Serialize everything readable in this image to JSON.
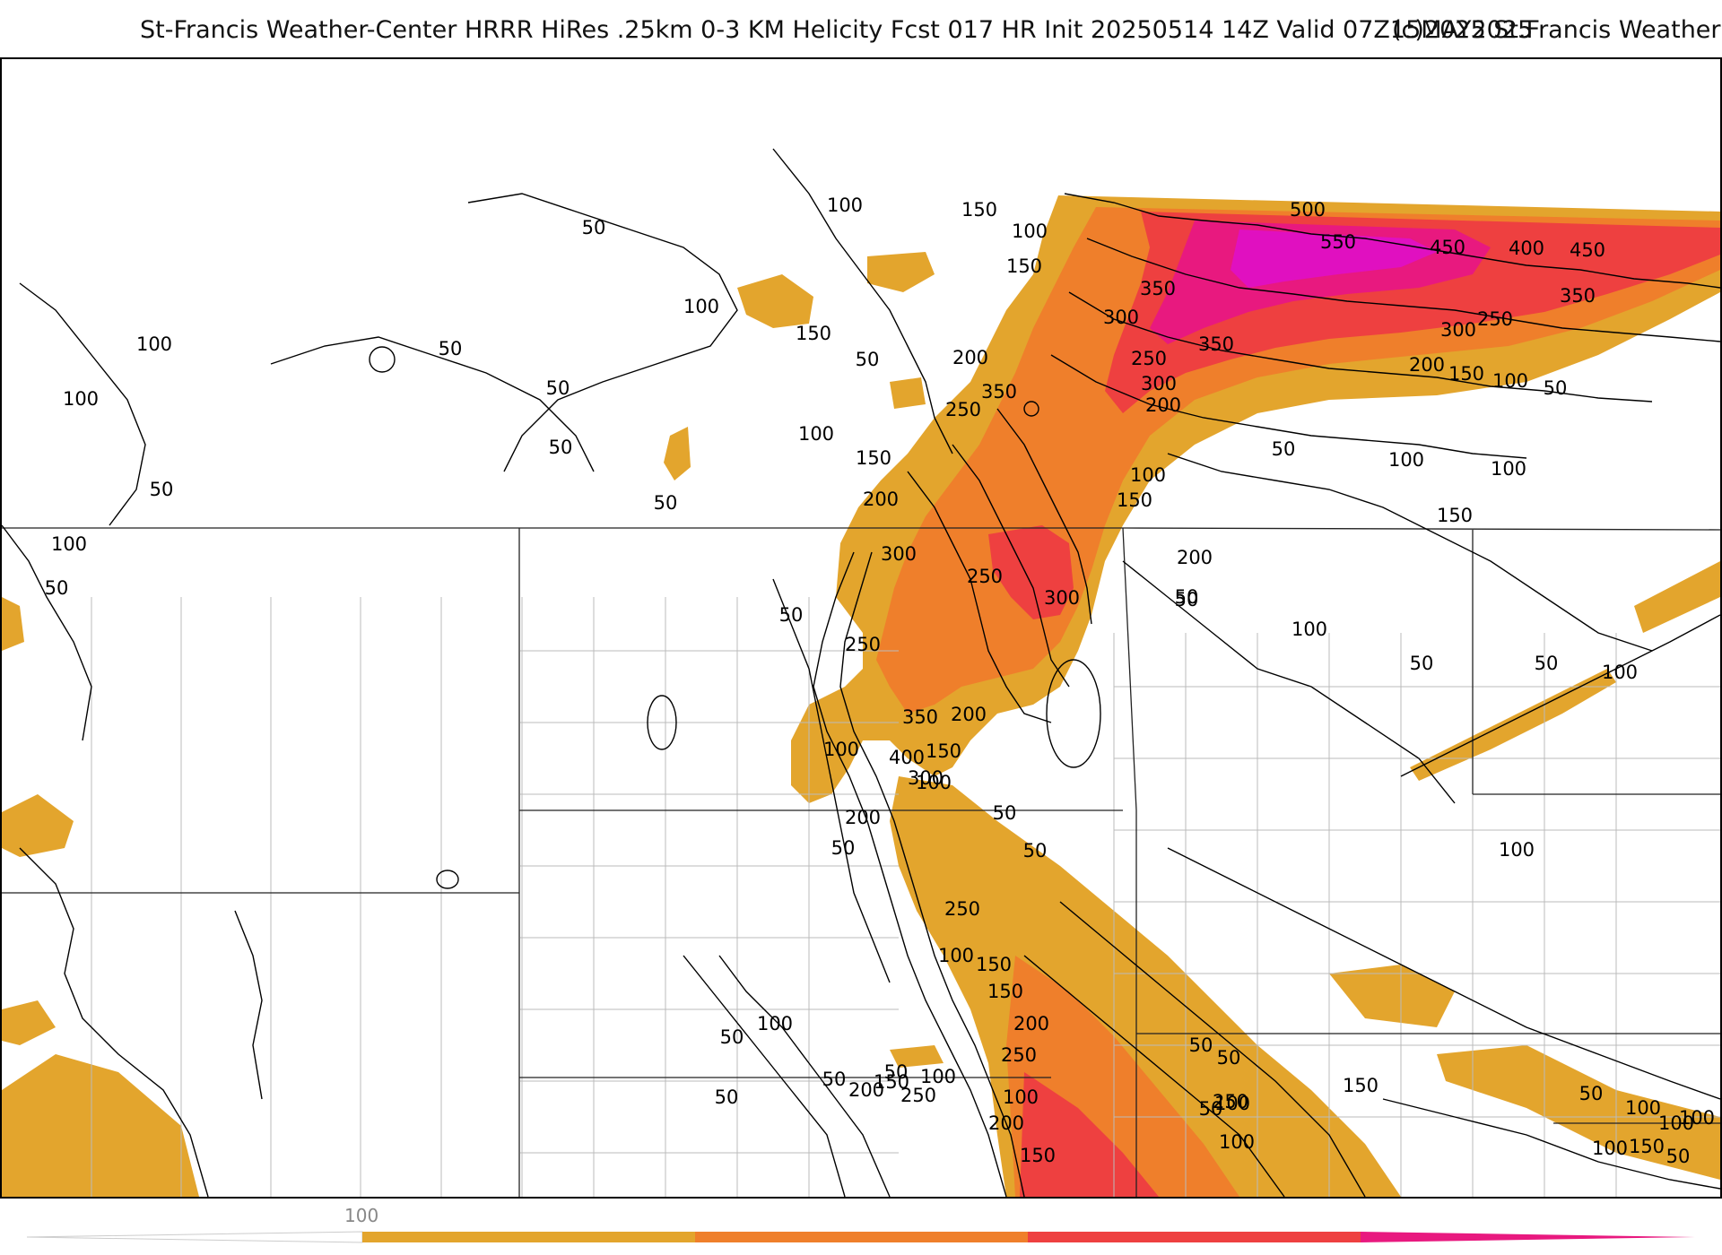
{
  "title": {
    "main": "St-Francis Weather-Center HRRR HiRes .25km 0-3 KM Helicity Fcst 017 HR Init 20250514 14Z  Valid 07Z15MAY2025",
    "copyright": "(c)2025 St.Francis Weather"
  },
  "colors": {
    "level_100": "#e3a52d",
    "level_200": "#ef7f2b",
    "level_300": "#ee4040",
    "level_400": "#e8197f",
    "level_500": "#e010c0",
    "contour": "#000000",
    "boundary": "#bbbbbb"
  },
  "colorbar": {
    "tick_label": "100",
    "stops": [
      {
        "value": 100,
        "color": "#e3a52d"
      },
      {
        "value": 200,
        "color": "#ef7f2b"
      },
      {
        "value": 300,
        "color": "#ee4040"
      },
      {
        "value": 400,
        "color": "#e8197f"
      }
    ]
  },
  "contour_labels": [
    {
      "text": "50"
    },
    {
      "text": "100"
    },
    {
      "text": "150"
    },
    {
      "text": "100"
    },
    {
      "text": "150"
    },
    {
      "text": "150"
    },
    {
      "text": "100"
    },
    {
      "text": "50"
    },
    {
      "text": "100"
    },
    {
      "text": "50"
    },
    {
      "text": "200"
    },
    {
      "text": "350"
    },
    {
      "text": "250"
    },
    {
      "text": "50"
    },
    {
      "text": "50"
    },
    {
      "text": "100"
    },
    {
      "text": "150"
    },
    {
      "text": "200"
    },
    {
      "text": "100"
    },
    {
      "text": "50"
    },
    {
      "text": "100"
    },
    {
      "text": "50"
    },
    {
      "text": "50"
    },
    {
      "text": "500"
    },
    {
      "text": "550"
    },
    {
      "text": "450"
    },
    {
      "text": "400"
    },
    {
      "text": "450"
    },
    {
      "text": "350"
    },
    {
      "text": "350"
    },
    {
      "text": "300"
    },
    {
      "text": "250"
    },
    {
      "text": "350"
    },
    {
      "text": "300"
    },
    {
      "text": "250"
    },
    {
      "text": "300"
    },
    {
      "text": "200"
    },
    {
      "text": "200"
    },
    {
      "text": "150"
    },
    {
      "text": "100"
    },
    {
      "text": "50"
    },
    {
      "text": "100"
    },
    {
      "text": "150"
    },
    {
      "text": "50"
    },
    {
      "text": "100"
    },
    {
      "text": "100"
    },
    {
      "text": "300"
    },
    {
      "text": "250"
    },
    {
      "text": "300"
    },
    {
      "text": "150"
    },
    {
      "text": "200"
    },
    {
      "text": "50"
    },
    {
      "text": "250"
    },
    {
      "text": "50"
    },
    {
      "text": "50"
    },
    {
      "text": "350"
    },
    {
      "text": "200"
    },
    {
      "text": "100"
    },
    {
      "text": "400"
    },
    {
      "text": "150"
    },
    {
      "text": "300"
    },
    {
      "text": "100"
    },
    {
      "text": "200"
    },
    {
      "text": "50"
    },
    {
      "text": "50"
    },
    {
      "text": "50"
    },
    {
      "text": "100"
    },
    {
      "text": "50"
    },
    {
      "text": "100"
    },
    {
      "text": "50"
    },
    {
      "text": "100"
    },
    {
      "text": "250"
    },
    {
      "text": "100"
    },
    {
      "text": "150"
    },
    {
      "text": "150"
    },
    {
      "text": "200"
    },
    {
      "text": "250"
    },
    {
      "text": "100"
    },
    {
      "text": "50"
    },
    {
      "text": "100"
    },
    {
      "text": "50"
    },
    {
      "text": "50"
    },
    {
      "text": "50"
    },
    {
      "text": "50"
    },
    {
      "text": "50"
    },
    {
      "text": "100"
    },
    {
      "text": "100"
    },
    {
      "text": "150"
    },
    {
      "text": "250"
    },
    {
      "text": "200"
    },
    {
      "text": "50"
    },
    {
      "text": "100"
    },
    {
      "text": "200"
    },
    {
      "text": "150"
    },
    {
      "text": "250"
    },
    {
      "text": "150"
    },
    {
      "text": "100"
    },
    {
      "text": "100"
    },
    {
      "text": "50"
    },
    {
      "text": "150"
    },
    {
      "text": "100"
    },
    {
      "text": "50"
    },
    {
      "text": "100"
    }
  ]
}
